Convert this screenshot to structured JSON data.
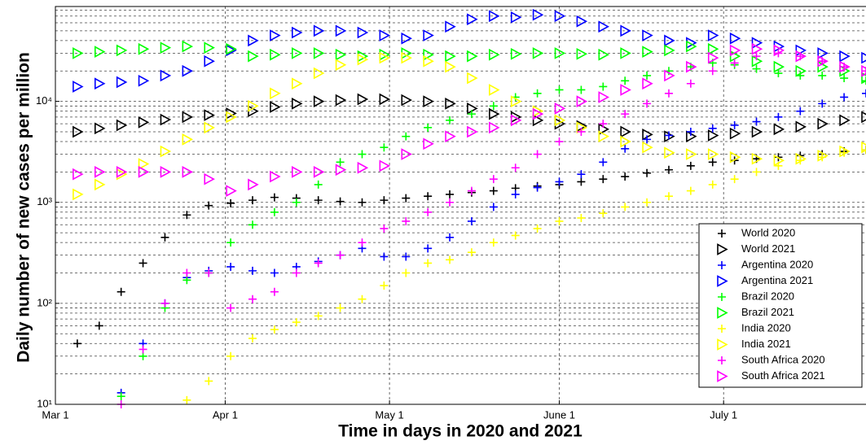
{
  "chart_data": {
    "type": "scatter",
    "log_y": true,
    "grid": true,
    "legend": "lower right",
    "xlabel": "Time in days in 2020 and 2021",
    "ylabel": "Daily number of new cases per million",
    "xlim": [
      0,
      148
    ],
    "ylim": [
      10,
      87000
    ],
    "xticks": [
      {
        "value": 0,
        "label": "Mar 1"
      },
      {
        "value": 31,
        "label": "Apr 1"
      },
      {
        "value": 61,
        "label": "May 1"
      },
      {
        "value": 92,
        "label": "June 1"
      },
      {
        "value": 122,
        "label": "July 1"
      }
    ],
    "yticks": [
      {
        "value": 10,
        "label": "10¹"
      },
      {
        "value": 100,
        "label": "10²"
      },
      {
        "value": 1000,
        "label": "10³"
      },
      {
        "value": 10000,
        "label": "10⁴"
      }
    ],
    "yminorticks": [
      20,
      30,
      40,
      50,
      60,
      70,
      80,
      90,
      200,
      300,
      400,
      500,
      600,
      700,
      800,
      900,
      2000,
      3000,
      4000,
      5000,
      6000,
      7000,
      8000,
      9000,
      20000,
      30000,
      40000,
      50000,
      60000,
      70000,
      80000
    ],
    "x": [
      4,
      8,
      12,
      16,
      20,
      24,
      28,
      32,
      36,
      40,
      44,
      48,
      52,
      56,
      60,
      64,
      68,
      72,
      76,
      80,
      84,
      88,
      92,
      96,
      100,
      104,
      108,
      112,
      116,
      120,
      124,
      128,
      132,
      136,
      140,
      144,
      148
    ],
    "series": [
      {
        "name": "World 2020",
        "color": "#000000",
        "marker": "plus",
        "values": [
          40,
          60,
          130,
          250,
          450,
          750,
          930,
          980,
          1050,
          1120,
          1100,
          1050,
          1020,
          1000,
          1050,
          1100,
          1150,
          1200,
          1250,
          1300,
          1380,
          1450,
          1500,
          1600,
          1700,
          1800,
          1950,
          2100,
          2300,
          2500,
          2600,
          2700,
          2800,
          2900,
          3000,
          3200,
          3300
        ]
      },
      {
        "name": "World 2021",
        "color": "#000000",
        "marker": "triangle",
        "values": [
          5000,
          5400,
          5800,
          6200,
          6600,
          7000,
          7300,
          7600,
          8000,
          8800,
          9500,
          10000,
          10300,
          10500,
          10500,
          10300,
          10000,
          9500,
          8500,
          7500,
          7000,
          6500,
          6000,
          5700,
          5300,
          5000,
          4700,
          4500,
          4500,
          4600,
          4800,
          5000,
          5300,
          5600,
          6000,
          6500,
          7000
        ]
      },
      {
        "name": "Argentina 2020",
        "color": "#0000ff",
        "marker": "plus",
        "values": [
          null,
          null,
          13,
          40,
          100,
          180,
          210,
          230,
          210,
          200,
          230,
          260,
          300,
          350,
          290,
          290,
          350,
          450,
          650,
          900,
          1200,
          1400,
          1600,
          1900,
          2500,
          3400,
          4200,
          4600,
          5000,
          5400,
          5800,
          6300,
          7000,
          8000,
          9500,
          11000,
          12000
        ]
      },
      {
        "name": "Argentina 2021",
        "color": "#0000ff",
        "marker": "triangle",
        "values": [
          14000,
          15000,
          15500,
          16000,
          18000,
          20000,
          25000,
          32000,
          40000,
          45000,
          48000,
          50000,
          50000,
          48000,
          45000,
          42000,
          45000,
          55000,
          65000,
          70000,
          68000,
          72000,
          70000,
          62000,
          55000,
          50000,
          45000,
          40000,
          38000,
          45000,
          42000,
          38000,
          35000,
          32000,
          30000,
          28000,
          27000
        ]
      },
      {
        "name": "Brazil 2020",
        "color": "#00ff00",
        "marker": "plus",
        "values": [
          null,
          null,
          12,
          30,
          90,
          170,
          200,
          400,
          600,
          800,
          1000,
          1500,
          2500,
          3000,
          3500,
          4500,
          5500,
          6500,
          7500,
          9000,
          11000,
          12000,
          13000,
          13000,
          14000,
          16000,
          18000,
          20000,
          22000,
          24000,
          23000,
          21000,
          19000,
          18000,
          18000,
          17000,
          16000
        ]
      },
      {
        "name": "Brazil 2021",
        "color": "#00ff00",
        "marker": "triangle",
        "values": [
          30000,
          31000,
          32000,
          33000,
          34000,
          35000,
          34000,
          33000,
          28000,
          29000,
          30000,
          30000,
          29000,
          28000,
          29000,
          30000,
          29000,
          28000,
          28000,
          29000,
          29500,
          30000,
          30000,
          29500,
          29000,
          30000,
          31000,
          32000,
          35000,
          33000,
          28000,
          25000,
          22000,
          20000,
          22000,
          20000,
          17000
        ]
      },
      {
        "name": "India 2020",
        "color": "#ffff00",
        "marker": "plus",
        "values": [
          null,
          null,
          null,
          null,
          null,
          11,
          17,
          30,
          45,
          55,
          65,
          75,
          90,
          110,
          150,
          200,
          250,
          270,
          320,
          400,
          470,
          550,
          650,
          700,
          780,
          900,
          1000,
          1150,
          1300,
          1500,
          1700,
          2000,
          2300,
          2600,
          2800,
          3100,
          3300
        ]
      },
      {
        "name": "India 2021",
        "color": "#ffff00",
        "marker": "triangle",
        "values": [
          1200,
          1500,
          1900,
          2400,
          3200,
          4200,
          5500,
          7000,
          9000,
          12000,
          15000,
          19000,
          23000,
          26000,
          27000,
          27000,
          25000,
          22000,
          17000,
          13000,
          10000,
          8000,
          6500,
          5500,
          4500,
          4000,
          3500,
          3100,
          3000,
          3000,
          2800,
          2700,
          2600,
          2700,
          2900,
          3200,
          3500
        ]
      },
      {
        "name": "South Africa 2020",
        "color": "#ff00ff",
        "marker": "plus",
        "values": [
          null,
          null,
          10,
          35,
          100,
          200,
          200,
          90,
          110,
          130,
          200,
          250,
          300,
          400,
          550,
          650,
          800,
          1000,
          1300,
          1700,
          2200,
          3000,
          4000,
          5000,
          6000,
          7500,
          9500,
          12000,
          15000,
          20000,
          24000,
          28000,
          30000,
          28000,
          25000,
          22000,
          20000
        ]
      },
      {
        "name": "South Africa 2021",
        "color": "#ff00ff",
        "marker": "triangle",
        "values": [
          1900,
          2000,
          2000,
          2000,
          2000,
          2000,
          1700,
          1300,
          1500,
          1800,
          2000,
          2000,
          2100,
          2200,
          2300,
          3000,
          3800,
          4500,
          5000,
          5500,
          6500,
          7500,
          8500,
          10000,
          11000,
          13000,
          15000,
          18000,
          22000,
          27000,
          32000,
          33000,
          32000,
          28000,
          25000,
          22000,
          20000
        ]
      }
    ]
  }
}
